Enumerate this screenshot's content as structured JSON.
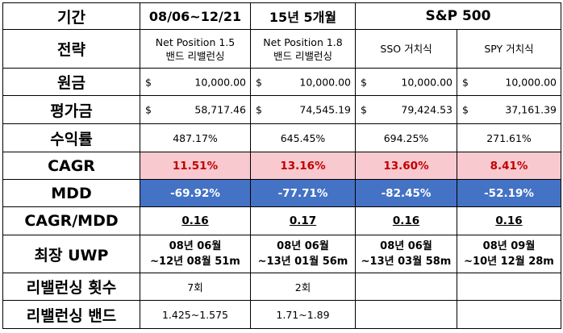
{
  "header": {
    "period_label": "기간",
    "period_1": "08/06~12/21",
    "period_2": "15년 5개월",
    "benchmark": "S&P 500"
  },
  "strategy": {
    "label": "전략",
    "col1": [
      "Net Position 1.5",
      "밴드 리밸런싱"
    ],
    "col2": [
      "Net Position 1.8",
      "밴드 리밸런싱"
    ],
    "col3": "SSO 거치식",
    "col4": "SPY 거치식"
  },
  "principal": {
    "label": "원금",
    "currency": "$",
    "values": [
      "10,000.00",
      "10,000.00",
      "10,000.00",
      "10,000.00"
    ]
  },
  "valuation": {
    "label": "평가금",
    "currency": "$",
    "values": [
      "58,717.46",
      "74,545.19",
      "79,424.53",
      "37,161.39"
    ]
  },
  "return_rate": {
    "label": "수익률",
    "values": [
      "487.17%",
      "645.45%",
      "694.25%",
      "271.61%"
    ]
  },
  "cagr": {
    "label": "CAGR",
    "values": [
      "11.51%",
      "13.16%",
      "13.60%",
      "8.41%"
    ]
  },
  "mdd": {
    "label": "MDD",
    "values": [
      "-69.92%",
      "-77.71%",
      "-82.45%",
      "-52.19%"
    ]
  },
  "cagr_mdd": {
    "label": "CAGR/MDD",
    "values": [
      "0.16",
      "0.17",
      "0.16",
      "0.16"
    ]
  },
  "longest_uwp": {
    "label": "최장 UWP",
    "values": [
      [
        "08년 06월",
        "~12년 08월 51m"
      ],
      [
        "08년 06월",
        "~13년 01월 56m"
      ],
      [
        "08년 06월",
        "~13년 03월 58m"
      ],
      [
        "08년 09월",
        "~10년 12월 28m"
      ]
    ]
  },
  "rebalance_count": {
    "label": "리밸런싱 횟수",
    "values": [
      "7회",
      "2회"
    ]
  },
  "rebalance_band": {
    "label": "리밸런싱 밴드",
    "values": [
      "1.425~1.575",
      "1.71~1.89"
    ]
  },
  "colors": {
    "cagr_bg": "#f8c9cf",
    "cagr_text": "#c00000",
    "mdd_bg": "#4472c4",
    "mdd_text": "#ffffff"
  }
}
